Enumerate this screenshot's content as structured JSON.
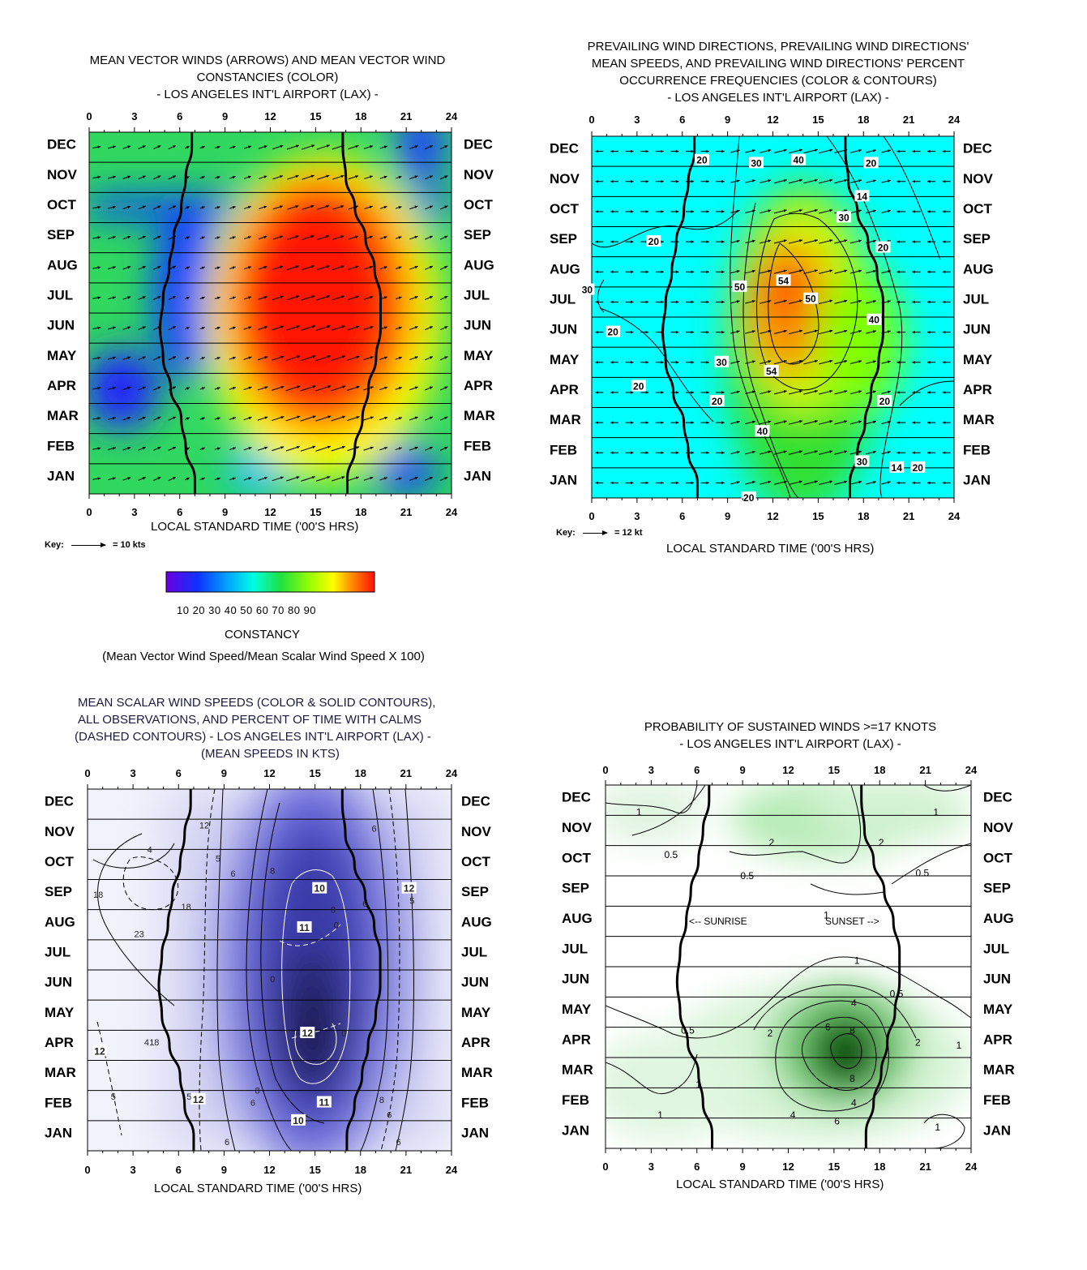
{
  "months": [
    "DEC",
    "NOV",
    "OCT",
    "SEP",
    "AUG",
    "JUL",
    "JUN",
    "MAY",
    "APR",
    "MAR",
    "FEB",
    "JAN"
  ],
  "hour_ticks": [
    "0",
    "3",
    "6",
    "9",
    "12",
    "15",
    "18",
    "21",
    "24"
  ],
  "panels": {
    "p1": {
      "title": [
        "MEAN VECTOR WINDS (ARROWS) AND MEAN VECTOR WIND",
        "CONSTANCIES (COLOR)",
        "- LOS ANGELES INT'L AIRPORT (LAX) -"
      ],
      "xlabel": "LOCAL STANDARD TIME ('00'S HRS)",
      "key_label": "Key:",
      "key_value": "= 10 kts"
    },
    "p2": {
      "title": [
        "PREVAILING WIND DIRECTIONS, PREVAILING WIND DIRECTIONS'",
        "MEAN SPEEDS, AND PREVAILING WIND DIRECTIONS' PERCENT",
        "OCCURRENCE FREQUENCIES (COLOR & CONTOURS)",
        "- LOS ANGELES INT'L AIRPORT (LAX) -"
      ],
      "xlabel": "LOCAL STANDARD TIME ('00'S HRS)",
      "key_label": "Key:",
      "key_value": "= 12 kt"
    },
    "p3": {
      "title": [
        "MEAN SCALAR WIND SPEEDS (COLOR & SOLID CONTOURS),",
        "ALL OBSERVATIONS, AND PERCENT OF TIME WITH CALMS",
        "(DASHED CONTOURS) - LOS ANGELES INT'L AIRPORT (LAX) -",
        "(MEAN SPEEDS IN KTS)"
      ],
      "xlabel": "LOCAL STANDARD TIME ('00'S HRS)"
    },
    "p4": {
      "title": [
        "PROBABILITY OF SUSTAINED WINDS >=17 KNOTS",
        "- LOS ANGELES INT'L AIRPORT (LAX) -"
      ],
      "xlabel": "LOCAL STANDARD TIME ('00'S HRS)",
      "sunrise_label": "<-- SUNRISE",
      "sunset_label": "SUNSET -->"
    }
  },
  "colorbar": {
    "ticks": "10 20 30 40 50 60 70 80 90",
    "name": "CONSTANCY",
    "formula": "(Mean Vector Wind Speed/Mean Scalar Wind Speed X 100)"
  },
  "chart_data": [
    {
      "type": "heatmap",
      "title": "MEAN VECTOR WINDS (ARROWS) AND MEAN VECTOR WIND CONSTANCIES (COLOR) - LOS ANGELES INT'L AIRPORT (LAX) -",
      "xlabel": "LOCAL STANDARD TIME ('00'S HRS)",
      "xlim": [
        0,
        24
      ],
      "y_categories": [
        "JAN",
        "FEB",
        "MAR",
        "APR",
        "MAY",
        "JUN",
        "JUL",
        "AUG",
        "SEP",
        "OCT",
        "NOV",
        "DEC"
      ],
      "colorbar_range": [
        10,
        90
      ],
      "sunrise_hour": [
        7.0,
        6.4,
        6.1,
        5.4,
        4.9,
        4.7,
        4.9,
        5.3,
        5.6,
        6.1,
        6.4,
        6.8
      ],
      "sunset_hour": [
        17.1,
        17.6,
        18.1,
        18.5,
        19.0,
        19.3,
        19.3,
        18.9,
        18.3,
        17.6,
        17.0,
        16.8
      ],
      "legend_key": "10 kts"
    },
    {
      "type": "heatmap",
      "title": "PREVAILING WIND DIRECTIONS, PREVAILING WIND DIRECTIONS' MEAN SPEEDS, AND PREVAILING WIND DIRECTIONS' PERCENT OCCURRENCE FREQUENCIES (COLOR & CONTOURS) - LOS ANGELES INT'L AIRPORT (LAX) -",
      "xlabel": "LOCAL STANDARD TIME ('00'S HRS)",
      "xlim": [
        0,
        24
      ],
      "contour_labels": [
        "20",
        "30",
        "40",
        "20",
        "14",
        "30",
        "20",
        "20",
        "30",
        "54",
        "50",
        "50",
        "40",
        "20",
        "30",
        "54",
        "20",
        "20",
        "20",
        "40",
        "30",
        "14",
        "20",
        "20"
      ],
      "legend_key": "12 kt"
    },
    {
      "type": "heatmap",
      "title": "MEAN SCALAR WIND SPEEDS (COLOR & SOLID CONTOURS), ALL OBSERVATIONS, AND PERCENT OF TIME WITH CALMS (DASHED CONTOURS) - LOS ANGELES INT'L AIRPORT (LAX) -",
      "xlabel": "LOCAL STANDARD TIME ('00'S HRS)",
      "xlim": [
        0,
        24
      ],
      "contour_labels": [
        "12",
        "6",
        "4",
        "5",
        "6",
        "8",
        "10",
        "8",
        "6",
        "12",
        "5",
        "18",
        "18",
        "23",
        "11",
        "0",
        "0",
        "0",
        "12",
        "4",
        "18",
        "12",
        "5",
        "5",
        "12",
        "8",
        "6",
        "11",
        "8",
        "6",
        "10",
        "6",
        "6"
      ]
    },
    {
      "type": "heatmap",
      "title": "PROBABILITY OF SUSTAINED WINDS >=17 KNOTS - LOS ANGELES INT'L AIRPORT (LAX) -",
      "xlabel": "LOCAL STANDARD TIME ('00'S HRS)",
      "xlim": [
        0,
        24
      ],
      "contour_labels": [
        "1",
        "1",
        "2",
        "2",
        "0.5",
        "0.5",
        "0.5",
        "1",
        "1",
        "0.5",
        "4",
        "6",
        "8",
        "0.5",
        "2",
        "2",
        "1",
        "8",
        "1",
        "4",
        "6",
        "4",
        "1",
        "1"
      ]
    }
  ]
}
